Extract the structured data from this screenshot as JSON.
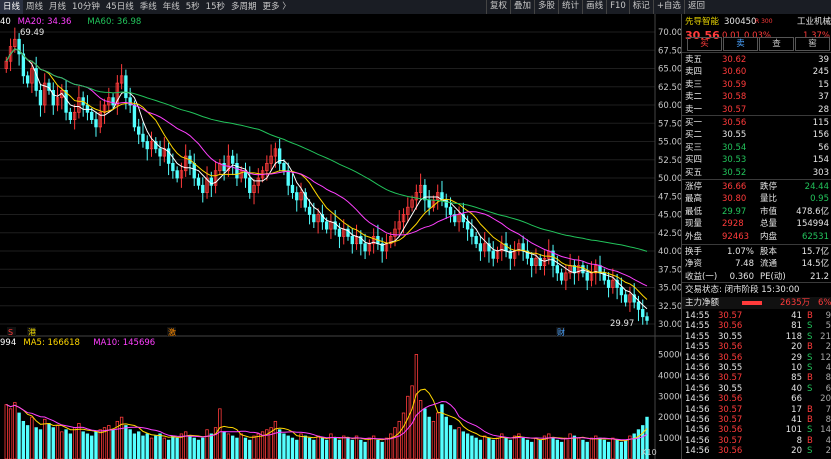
{
  "toolbar": {
    "periods": [
      "日线",
      "周线",
      "月线",
      "10分钟",
      "45日线",
      "季线",
      "年线",
      "5秒",
      "15秒",
      "多周期",
      "更多 〉"
    ],
    "tools": [
      "复权",
      "叠加",
      "多股",
      "统计",
      "画线",
      "F10",
      "标记",
      "+自选",
      "返回"
    ]
  },
  "chart_legend": {
    "ma_price": [
      {
        "label": "40",
        "color": "#ffffff"
      },
      {
        "label": "MA20: 34.36",
        "color": "#ff40ff"
      },
      {
        "label": "MA60: 36.98",
        "color": "#22c35b"
      }
    ],
    "ma_volume": [
      {
        "label": "994",
        "color": "#ffffff"
      },
      {
        "label": "MA5: 166618",
        "color": "#ffd700"
      },
      {
        "label": "MA10: 145696",
        "color": "#ff40ff"
      }
    ],
    "high_label": "69.49",
    "low_label": "29.97",
    "volume_unit": "X10",
    "markers": [
      {
        "text": "S",
        "color": "#ff3b3b"
      },
      {
        "text": "港",
        "color": "#e6d200"
      },
      {
        "text": "激",
        "color": "#ff8c00"
      },
      {
        "text": "财",
        "color": "#4aa3ff"
      }
    ]
  },
  "chart_data": {
    "type": "candlestick",
    "price_axis": {
      "ticks": [
        "70.00",
        "67.50",
        "65.00",
        "62.50",
        "60.00",
        "57.50",
        "55.00",
        "52.50",
        "50.00",
        "47.50",
        "45.00",
        "42.50",
        "40.00",
        "37.50",
        "35.00",
        "32.50",
        "30.00"
      ],
      "ylim": [
        30,
        70
      ]
    },
    "volume_axis": {
      "ticks": [
        "50000",
        "40000",
        "30000",
        "20000",
        "10000"
      ],
      "ylim": [
        0,
        55000
      ]
    },
    "close": [
      66,
      68,
      69,
      67,
      64,
      63,
      65,
      62,
      60,
      63,
      62,
      60,
      61,
      62,
      59,
      58,
      59,
      61,
      60,
      59,
      58,
      57,
      59,
      60,
      61,
      60,
      63,
      64,
      61,
      60,
      57,
      56,
      55,
      54,
      55,
      54,
      53,
      54,
      52,
      51,
      50,
      51,
      53,
      52,
      50,
      49,
      48,
      50,
      49,
      51,
      52,
      51,
      53,
      52,
      50,
      51,
      50,
      48,
      49,
      50,
      51,
      52,
      53,
      54,
      52,
      51,
      49,
      48,
      47,
      48,
      46,
      45,
      44,
      45,
      44,
      43,
      44,
      43,
      42,
      43,
      42,
      41,
      42,
      41,
      40,
      41,
      42,
      41,
      40,
      41,
      42,
      43,
      44,
      45,
      46,
      47,
      48,
      49,
      47,
      46,
      47,
      48,
      47,
      46,
      45,
      44,
      45,
      44,
      43,
      42,
      41,
      40,
      41,
      40,
      39,
      40,
      41,
      40,
      39,
      40,
      41,
      40,
      39,
      38,
      39,
      38,
      39,
      40,
      38,
      37,
      36,
      37,
      38,
      37,
      38,
      37,
      36,
      37,
      38,
      37,
      36,
      35,
      36,
      35,
      34,
      33,
      34,
      33,
      32,
      31,
      30.5
    ],
    "volumes": [
      26000,
      24000,
      27000,
      22000,
      18000,
      16000,
      20000,
      15000,
      14000,
      19000,
      17000,
      15000,
      16000,
      13000,
      14000,
      12000,
      15000,
      17000,
      13000,
      12000,
      11000,
      13000,
      14000,
      15000,
      16000,
      14000,
      18000,
      20000,
      16000,
      14000,
      12000,
      13000,
      11000,
      12000,
      10000,
      11000,
      12000,
      10000,
      9000,
      11000,
      10000,
      12000,
      13000,
      11000,
      10000,
      9000,
      10000,
      14000,
      12000,
      15000,
      24000,
      13000,
      12000,
      11000,
      10000,
      12000,
      10000,
      9000,
      11000,
      12000,
      13000,
      14000,
      15000,
      18000,
      14000,
      12000,
      11000,
      10000,
      9000,
      12000,
      11000,
      10000,
      9000,
      11000,
      10000,
      9000,
      12000,
      10000,
      9000,
      11000,
      10000,
      9000,
      11000,
      9000,
      8000,
      10000,
      11000,
      9000,
      8000,
      10000,
      12000,
      15000,
      18000,
      22000,
      30000,
      35000,
      50000,
      28000,
      24000,
      20000,
      18000,
      22000,
      26000,
      20000,
      16000,
      14000,
      15000,
      13000,
      12000,
      11000,
      10000,
      9000,
      11000,
      10000,
      9000,
      10000,
      12000,
      10000,
      9000,
      11000,
      12000,
      10000,
      9000,
      8000,
      10000,
      9000,
      11000,
      12000,
      10000,
      9000,
      8000,
      10000,
      12000,
      11000,
      10000,
      9000,
      8000,
      10000,
      11000,
      10000,
      9000,
      8000,
      10000,
      9000,
      8000,
      9000,
      11000,
      12000,
      14000,
      16000,
      20000
    ]
  },
  "quote": {
    "name": "先导智能",
    "code": "300450",
    "tag": "R 300",
    "sector": "工业机械",
    "sector_change": "1.37%",
    "price": "30.56",
    "change": "0.01",
    "change_pct": "0.03%",
    "buttons": [
      "买",
      "卖",
      "查",
      "窖"
    ],
    "asks": [
      {
        "label": "卖五",
        "price": "30.62",
        "vol": "39"
      },
      {
        "label": "卖四",
        "price": "30.60",
        "vol": "245"
      },
      {
        "label": "卖三",
        "price": "30.59",
        "vol": "15"
      },
      {
        "label": "卖二",
        "price": "30.58",
        "vol": "37"
      },
      {
        "label": "卖一",
        "price": "30.57",
        "vol": "28"
      }
    ],
    "bids": [
      {
        "label": "买一",
        "price": "30.56",
        "vol": "115",
        "color": "red"
      },
      {
        "label": "买二",
        "price": "30.55",
        "vol": "156",
        "color": "white"
      },
      {
        "label": "买三",
        "price": "30.54",
        "vol": "56",
        "color": "green"
      },
      {
        "label": "买四",
        "price": "30.53",
        "vol": "154",
        "color": "green"
      },
      {
        "label": "买五",
        "price": "30.52",
        "vol": "303",
        "color": "green"
      }
    ],
    "stats": [
      {
        "l1": "涨停",
        "v1": "36.66",
        "c1": "red",
        "l2": "跌停",
        "v2": "24.44",
        "c2": "green"
      },
      {
        "l1": "最高",
        "v1": "30.80",
        "c1": "red",
        "l2": "量比",
        "v2": "0.95",
        "c2": "green"
      },
      {
        "l1": "最低",
        "v1": "29.97",
        "c1": "green",
        "l2": "市值",
        "v2": "478.6亿",
        "c2": "white"
      },
      {
        "l1": "现量",
        "v1": "2928",
        "c1": "red",
        "l2": "总量",
        "v2": "154994",
        "c2": "white"
      },
      {
        "l1": "外盘",
        "v1": "92463",
        "c1": "red",
        "l2": "内盘",
        "v2": "62531",
        "c2": "green"
      }
    ],
    "stats2": [
      {
        "l1": "换手",
        "v1": "1.07%",
        "l2": "股本",
        "v2": "15.7亿"
      },
      {
        "l1": "净资",
        "v1": "7.48",
        "l2": "流通",
        "v2": "14.5亿"
      },
      {
        "l1": "收益(一)",
        "v1": "0.360",
        "l2": "PE(动)",
        "v2": "21.2"
      }
    ],
    "status": "交易状态: 闭市阶段 15:30:00",
    "main_flow_label": "主力净额",
    "main_flow_value": "2635万",
    "main_flow_pct": "6%",
    "ticks": [
      {
        "t": "14:55",
        "p": "30.57",
        "pc": "red",
        "v": "41",
        "s": "B",
        "n": "9"
      },
      {
        "t": "14:55",
        "p": "30.56",
        "pc": "red",
        "v": "81",
        "s": "S",
        "n": "5"
      },
      {
        "t": "14:55",
        "p": "30.55",
        "pc": "white",
        "v": "118",
        "s": "S",
        "n": "21"
      },
      {
        "t": "14:55",
        "p": "30.56",
        "pc": "red",
        "v": "20",
        "s": "B",
        "n": "2"
      },
      {
        "t": "14:56",
        "p": "30.56",
        "pc": "red",
        "v": "29",
        "s": "S",
        "n": "12"
      },
      {
        "t": "14:56",
        "p": "30.55",
        "pc": "white",
        "v": "10",
        "s": "S",
        "n": "4"
      },
      {
        "t": "14:56",
        "p": "30.57",
        "pc": "red",
        "v": "85",
        "s": "B",
        "n": "8"
      },
      {
        "t": "14:56",
        "p": "30.55",
        "pc": "white",
        "v": "40",
        "s": "S",
        "n": "6"
      },
      {
        "t": "14:56",
        "p": "30.56",
        "pc": "red",
        "v": "66",
        "s": "",
        "n": "20"
      },
      {
        "t": "14:56",
        "p": "30.57",
        "pc": "red",
        "v": "17",
        "s": "B",
        "n": "7"
      },
      {
        "t": "14:56",
        "p": "30.57",
        "pc": "red",
        "v": "41",
        "s": "B",
        "n": "8"
      },
      {
        "t": "14:56",
        "p": "30.56",
        "pc": "red",
        "v": "101",
        "s": "S",
        "n": "14"
      },
      {
        "t": "14:56",
        "p": "30.57",
        "pc": "red",
        "v": "8",
        "s": "B",
        "n": "4"
      },
      {
        "t": "14:56",
        "p": "30.56",
        "pc": "red",
        "v": "20",
        "s": "S",
        "n": "2"
      }
    ]
  }
}
